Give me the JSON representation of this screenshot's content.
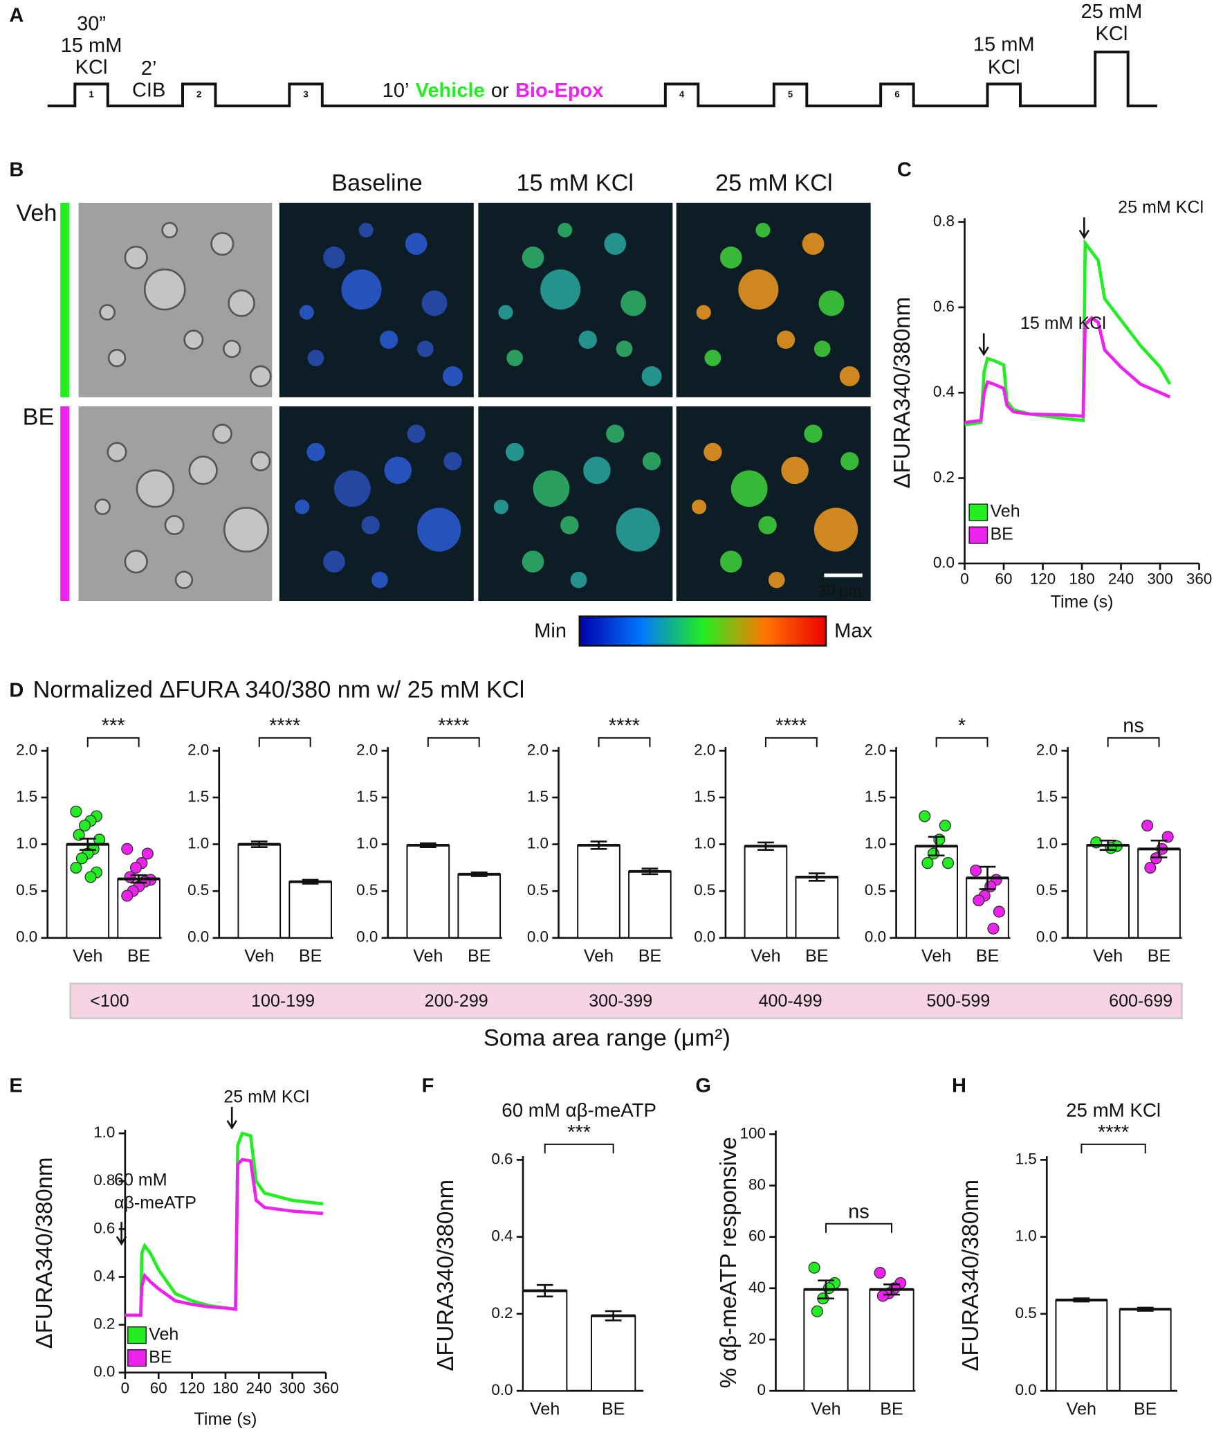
{
  "panel_labels": [
    "A",
    "B",
    "C",
    "D",
    "E",
    "F",
    "G",
    "H"
  ],
  "protocol": {
    "step1": [
      "30”",
      "15 mM",
      "KCl"
    ],
    "cib": [
      "2’",
      "CIB"
    ],
    "pulses": [
      "1",
      "2",
      "3",
      "4",
      "5",
      "6"
    ],
    "treatment": [
      "10’",
      "Vehicle",
      "or",
      "Bio-Epox"
    ],
    "step_15": [
      "15 mM",
      "KCl"
    ],
    "step_25": [
      "25 mM",
      "KCl"
    ]
  },
  "imaging": {
    "rows": [
      "Veh",
      "BE"
    ],
    "columns": [
      "Baseline",
      "15 mM KCl",
      "25 mM KCl"
    ],
    "scale_bar": "30 μm",
    "colorbar": [
      "Min",
      "Max"
    ]
  },
  "d_title": "Normalized ΔFURA 340/380 nm w/ 25 mM KCl",
  "soma_axis_label": "Soma area range (μm²)",
  "chart_data": [
    {
      "type": "line",
      "ylabel": "ΔFURA340/380nm",
      "xlabel": "Time (s)",
      "annotations": [
        "15 mM KCl",
        "25 mM KCl"
      ],
      "xlim": [
        0,
        360
      ],
      "ylim": [
        0,
        0.8
      ],
      "xticks": [
        0,
        60,
        120,
        180,
        240,
        300,
        360
      ],
      "yticks": [
        {
          "value": 0,
          "label": "0.0"
        },
        0.2,
        0.4,
        0.6,
        0.8
      ],
      "x": [
        0,
        25,
        30,
        35,
        45,
        60,
        65,
        75,
        100,
        150,
        182,
        185,
        195,
        205,
        215,
        240,
        270,
        300,
        315
      ],
      "series": [
        {
          "name": "Veh",
          "color": "#22ee22",
          "values": [
            0.325,
            0.33,
            0.45,
            0.48,
            0.475,
            0.465,
            0.38,
            0.36,
            0.35,
            0.34,
            0.335,
            0.75,
            0.73,
            0.71,
            0.62,
            0.57,
            0.51,
            0.46,
            0.42
          ]
        },
        {
          "name": "BE",
          "color": "#ee22ee",
          "values": [
            0.33,
            0.335,
            0.4,
            0.425,
            0.42,
            0.41,
            0.37,
            0.355,
            0.35,
            0.348,
            0.345,
            0.56,
            0.575,
            0.565,
            0.5,
            0.46,
            0.42,
            0.4,
            0.39
          ]
        }
      ]
    },
    {
      "type": "bar",
      "group": "<100",
      "significance": "***",
      "categories": [
        "Veh",
        "BE"
      ],
      "values": [
        1.0,
        0.63
      ],
      "errors": [
        0.06,
        0.04
      ],
      "colors": [
        "#22ee22",
        "#ee22ee"
      ],
      "ylim": [
        0,
        2
      ],
      "yticks": [
        {
          "value": 0,
          "label": "0.0"
        },
        0.5,
        {
          "value": 1,
          "label": "1.0"
        },
        1.5,
        {
          "value": 2,
          "label": "2.0"
        }
      ],
      "points": [
        [
          1.35,
          1.3,
          1.25,
          1.2,
          1.1,
          1.05,
          0.95,
          0.9,
          0.85,
          0.75,
          0.7,
          0.65
        ],
        [
          0.95,
          0.9,
          0.8,
          0.75,
          0.65,
          0.62,
          0.6,
          0.55,
          0.5,
          0.45
        ]
      ]
    },
    {
      "type": "bar",
      "group": "100-199",
      "significance": "****",
      "categories": [
        "Veh",
        "BE"
      ],
      "values": [
        1.0,
        0.6
      ],
      "errors": [
        0.03,
        0.02
      ],
      "colors": [
        "#22ee22",
        "#ee22ee"
      ],
      "ylim": [
        0,
        2
      ],
      "yticks": [
        {
          "value": 0,
          "label": "0.0"
        },
        0.5,
        {
          "value": 1,
          "label": "1.0"
        },
        1.5,
        {
          "value": 2,
          "label": "2.0"
        }
      ]
    },
    {
      "type": "bar",
      "group": "200-299",
      "significance": "****",
      "categories": [
        "Veh",
        "BE"
      ],
      "values": [
        0.99,
        0.68
      ],
      "errors": [
        0.02,
        0.02
      ],
      "colors": [
        "#22ee22",
        "#ee22ee"
      ],
      "ylim": [
        0,
        2
      ],
      "yticks": [
        {
          "value": 0,
          "label": "0.0"
        },
        0.5,
        {
          "value": 1,
          "label": "1.0"
        },
        1.5,
        {
          "value": 2,
          "label": "2.0"
        }
      ]
    },
    {
      "type": "bar",
      "group": "300-399",
      "significance": "****",
      "categories": [
        "Veh",
        "BE"
      ],
      "values": [
        0.99,
        0.71
      ],
      "errors": [
        0.04,
        0.03
      ],
      "colors": [
        "#22ee22",
        "#ee22ee"
      ],
      "ylim": [
        0,
        2
      ],
      "yticks": [
        {
          "value": 0,
          "label": "0.0"
        },
        0.5,
        {
          "value": 1,
          "label": "1.0"
        },
        1.5,
        {
          "value": 2,
          "label": "2.0"
        }
      ]
    },
    {
      "type": "bar",
      "group": "400-499",
      "significance": "****",
      "categories": [
        "Veh",
        "BE"
      ],
      "values": [
        0.98,
        0.65
      ],
      "errors": [
        0.04,
        0.04
      ],
      "colors": [
        "#22ee22",
        "#ee22ee"
      ],
      "ylim": [
        0,
        2
      ],
      "yticks": [
        {
          "value": 0,
          "label": "0.0"
        },
        0.5,
        {
          "value": 1,
          "label": "1.0"
        },
        1.5,
        {
          "value": 2,
          "label": "2.0"
        }
      ]
    },
    {
      "type": "bar",
      "group": "500-599",
      "significance": "*",
      "categories": [
        "Veh",
        "BE"
      ],
      "values": [
        0.98,
        0.64
      ],
      "errors": [
        0.1,
        0.12
      ],
      "colors": [
        "#22ee22",
        "#ee22ee"
      ],
      "ylim": [
        0,
        2
      ],
      "yticks": [
        {
          "value": 0,
          "label": "0.0"
        },
        0.5,
        {
          "value": 1,
          "label": "1.0"
        },
        1.5,
        {
          "value": 2,
          "label": "2.0"
        }
      ],
      "points": [
        [
          1.3,
          1.2,
          1.05,
          0.9,
          0.8,
          0.8
        ],
        [
          0.72,
          0.62,
          0.55,
          0.45,
          0.4,
          0.28,
          0.1
        ]
      ]
    },
    {
      "type": "bar",
      "group": "600-699",
      "significance": "ns",
      "categories": [
        "Veh",
        "BE"
      ],
      "values": [
        0.99,
        0.95
      ],
      "errors": [
        0.05,
        0.09
      ],
      "colors": [
        "#22ee22",
        "#ee22ee"
      ],
      "ylim": [
        0,
        2
      ],
      "yticks": [
        {
          "value": 0,
          "label": "0.0"
        },
        0.5,
        {
          "value": 1,
          "label": "1.0"
        },
        1.5,
        {
          "value": 2,
          "label": "2.0"
        }
      ],
      "points": [
        [
          1.02,
          0.98,
          0.96
        ],
        [
          1.2,
          1.08,
          0.95,
          0.85,
          0.75
        ]
      ]
    },
    {
      "type": "line",
      "ylabel": "ΔFURA340/380nm",
      "xlabel": "Time (s)",
      "annotations": [
        "60 mM",
        "αβ-meATP",
        "25 mM KCl"
      ],
      "xlim": [
        0,
        360
      ],
      "ylim": [
        0,
        1
      ],
      "xticks": [
        0,
        60,
        120,
        180,
        240,
        300,
        360
      ],
      "yticks": [
        {
          "value": 0,
          "label": "0.0"
        },
        0.2,
        0.4,
        0.6,
        0.8,
        {
          "value": 1,
          "label": "1.0"
        }
      ],
      "x": [
        0,
        28,
        30,
        35,
        45,
        60,
        90,
        120,
        150,
        180,
        198,
        202,
        210,
        225,
        235,
        250,
        300,
        355
      ],
      "series": [
        {
          "name": "Veh",
          "color": "#22ee22",
          "values": [
            0.24,
            0.24,
            0.5,
            0.53,
            0.5,
            0.43,
            0.33,
            0.3,
            0.28,
            0.27,
            0.265,
            0.95,
            1.0,
            0.99,
            0.8,
            0.75,
            0.72,
            0.705
          ]
        },
        {
          "name": "BE",
          "color": "#ee22ee",
          "values": [
            0.24,
            0.24,
            0.36,
            0.405,
            0.38,
            0.35,
            0.3,
            0.285,
            0.275,
            0.27,
            0.265,
            0.87,
            0.89,
            0.885,
            0.72,
            0.69,
            0.675,
            0.665
          ]
        }
      ]
    },
    {
      "type": "bar",
      "title": "60 mM αβ-meATP",
      "ylabel": "ΔFURA340/380nm",
      "significance": "***",
      "categories": [
        "Veh",
        "BE"
      ],
      "values": [
        0.26,
        0.195
      ],
      "errors": [
        0.015,
        0.012
      ],
      "colors": [
        "#22ee22",
        "#ee22ee"
      ],
      "ylim": [
        0,
        0.6
      ],
      "yticks": [
        {
          "value": 0,
          "label": "0.0"
        },
        0.2,
        0.4,
        0.6
      ]
    },
    {
      "type": "bar",
      "ylabel": "% αβ-meATP responsive",
      "significance": "ns",
      "categories": [
        "Veh",
        "BE"
      ],
      "values": [
        39.5,
        39.5
      ],
      "errors": [
        3.5,
        2
      ],
      "colors": [
        "#22ee22",
        "#ee22ee"
      ],
      "ylim": [
        0,
        100
      ],
      "yticks": [
        0,
        20,
        40,
        60,
        80,
        100
      ],
      "points": [
        [
          48,
          42,
          40,
          36,
          31
        ],
        [
          46,
          42,
          40,
          38,
          37
        ]
      ]
    },
    {
      "type": "bar",
      "title": "25 mM KCl",
      "ylabel": "ΔFURA340/380nm",
      "significance": "****",
      "categories": [
        "Veh",
        "BE"
      ],
      "values": [
        0.59,
        0.53
      ],
      "errors": [
        0.01,
        0.01
      ],
      "colors": [
        "#22ee22",
        "#ee22ee"
      ],
      "ylim": [
        0,
        1.5
      ],
      "yticks": [
        {
          "value": 0,
          "label": "0.0"
        },
        0.5,
        {
          "value": 1,
          "label": "1.0"
        },
        1.5
      ]
    }
  ]
}
